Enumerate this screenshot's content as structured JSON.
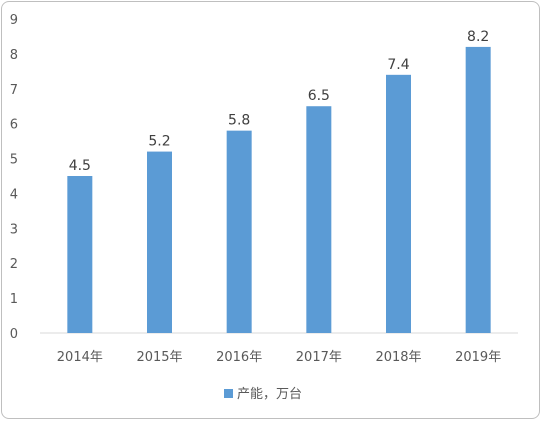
{
  "chart_data": {
    "type": "bar",
    "categories": [
      "2014年",
      "2015年",
      "2016年",
      "2017年",
      "2018年",
      "2019年"
    ],
    "series": [
      {
        "name": "产能，万台",
        "values": [
          4.5,
          5.2,
          5.8,
          6.5,
          7.4,
          8.2
        ]
      }
    ],
    "data_labels": [
      "4.5",
      "5.2",
      "5.8",
      "6.5",
      "7.4",
      "8.2"
    ],
    "y_ticks": [
      "0",
      "1",
      "2",
      "3",
      "4",
      "5",
      "6",
      "7",
      "8",
      "9"
    ],
    "ylim": [
      0,
      9
    ],
    "grid": false,
    "legend_position": "bottom",
    "colors": {
      "bar": "#5b9bd5",
      "axis": "#d9d9d9",
      "text": "#595959"
    }
  }
}
